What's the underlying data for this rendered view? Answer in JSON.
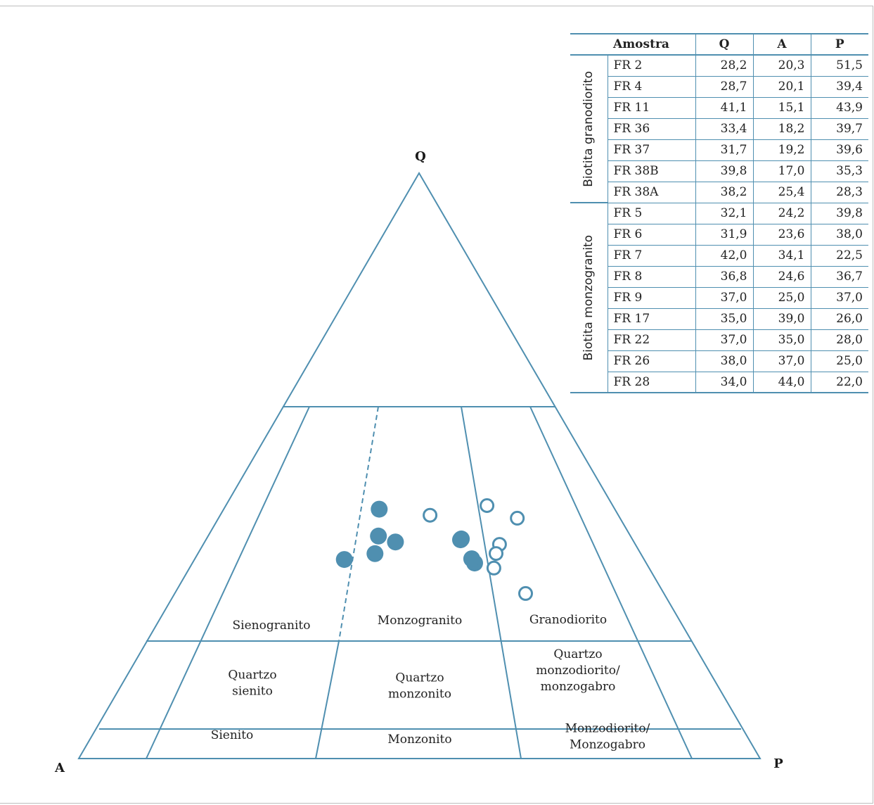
{
  "chart_data": {
    "type": "scatter",
    "diagram": "QAP ternary (Streckeisen)",
    "vertices": {
      "top": "Q",
      "left": "A",
      "right": "P"
    },
    "fields": [
      {
        "name": "Sienogranito"
      },
      {
        "name": "Monzogranito"
      },
      {
        "name": "Granodiorito"
      },
      {
        "name": "Quartzo sienito",
        "lines": [
          "Quartzo",
          "sienito"
        ]
      },
      {
        "name": "Quartzo monzonito",
        "lines": [
          "Quartzo",
          "monzonito"
        ]
      },
      {
        "name": "Quartzo monzodiorito/monzogabro",
        "lines": [
          "Quartzo",
          "monzodiorito/",
          "monzogabro"
        ]
      },
      {
        "name": "Sienito"
      },
      {
        "name": "Monzonito"
      },
      {
        "name": "Monzodiorito/Monzogabro",
        "lines": [
          "Monzodiorito/",
          "Monzogabro"
        ]
      }
    ],
    "table_headers": {
      "sample": "Amostra",
      "q": "Q",
      "a": "A",
      "p": "P"
    },
    "groups": [
      {
        "name": "Biotita granodiorito",
        "marker": "open-circle",
        "samples": [
          {
            "id": "FR 2",
            "Q": "28,2",
            "A": "20,3",
            "P": "51,5"
          },
          {
            "id": "FR 4",
            "Q": "28,7",
            "A": "20,1",
            "P": "39,4"
          },
          {
            "id": "FR 11",
            "Q": "41,1",
            "A": "15,1",
            "P": "43,9"
          },
          {
            "id": "FR 36",
            "Q": "33,4",
            "A": "18,2",
            "P": "39,7"
          },
          {
            "id": "FR 37",
            "Q": "31,7",
            "A": "19,2",
            "P": "39,6"
          },
          {
            "id": "FR 38B",
            "Q": "39,8",
            "A": "17,0",
            "P": "35,3"
          },
          {
            "id": "FR 38A",
            "Q": "38,2",
            "A": "25,4",
            "P": "28,3"
          }
        ]
      },
      {
        "name": "Biotita monzogranito",
        "marker": "filled-circle",
        "samples": [
          {
            "id": "FR 5",
            "Q": "32,1",
            "A": "24,2",
            "P": "39,8"
          },
          {
            "id": "FR 6",
            "Q": "31,9",
            "A": "23,6",
            "P": "38,0"
          },
          {
            "id": "FR 7",
            "Q": "42,0",
            "A": "34,1",
            "P": "22,5"
          },
          {
            "id": "FR 8",
            "Q": "36,8",
            "A": "24,6",
            "P": "36,7"
          },
          {
            "id": "FR 9",
            "Q": "37,0",
            "A": "25,0",
            "P": "37,0"
          },
          {
            "id": "FR 17",
            "Q": "35,0",
            "A": "39,0",
            "P": "26,0"
          },
          {
            "id": "FR 22",
            "Q": "37,0",
            "A": "35,0",
            "P": "28,0"
          },
          {
            "id": "FR 26",
            "Q": "38,0",
            "A": "37,0",
            "P": "25,0"
          },
          {
            "id": "FR 28",
            "Q": "34,0",
            "A": "44,0",
            "P": "22,0"
          }
        ]
      }
    ],
    "colors": {
      "line": "#4f8fb0",
      "marker": "#4f8fb0"
    }
  }
}
